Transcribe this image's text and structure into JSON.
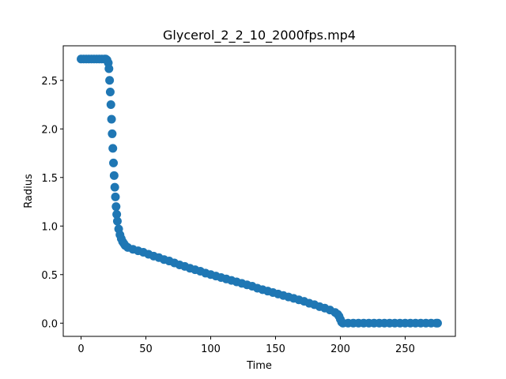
{
  "chart_data": {
    "type": "scatter",
    "title": "Glycerol_2_2_10_2000fps.mp4",
    "x_label": "Time",
    "y_label": "Radius",
    "color": "#1f77b4",
    "x": [
      0,
      2,
      4,
      6,
      8,
      10,
      12,
      14,
      16,
      18,
      19,
      20,
      21,
      21.5,
      22,
      22.5,
      23,
      23.5,
      24,
      24.5,
      25,
      25.5,
      26,
      26.5,
      27,
      27.5,
      28,
      29,
      30,
      31,
      32,
      33,
      34,
      36,
      40,
      44,
      48,
      52,
      56,
      60,
      64,
      68,
      72,
      76,
      80,
      84,
      88,
      92,
      96,
      100,
      104,
      108,
      112,
      116,
      120,
      124,
      128,
      132,
      136,
      140,
      144,
      148,
      152,
      156,
      160,
      164,
      168,
      172,
      176,
      180,
      184,
      188,
      192,
      196,
      198,
      199,
      200,
      201,
      202,
      206,
      210,
      214,
      218,
      222,
      226,
      230,
      234,
      238,
      242,
      246,
      250,
      254,
      258,
      262,
      266,
      270,
      274,
      275
    ],
    "values": [
      2.72,
      2.72,
      2.72,
      2.72,
      2.72,
      2.72,
      2.72,
      2.72,
      2.72,
      2.72,
      2.72,
      2.71,
      2.68,
      2.62,
      2.5,
      2.38,
      2.25,
      2.1,
      1.95,
      1.8,
      1.65,
      1.52,
      1.4,
      1.3,
      1.2,
      1.12,
      1.05,
      0.97,
      0.91,
      0.87,
      0.84,
      0.82,
      0.8,
      0.78,
      0.76,
      0.745,
      0.73,
      0.71,
      0.69,
      0.675,
      0.655,
      0.64,
      0.62,
      0.6,
      0.585,
      0.565,
      0.55,
      0.535,
      0.515,
      0.5,
      0.485,
      0.47,
      0.455,
      0.44,
      0.425,
      0.41,
      0.395,
      0.38,
      0.36,
      0.345,
      0.33,
      0.315,
      0.3,
      0.285,
      0.27,
      0.255,
      0.24,
      0.225,
      0.205,
      0.19,
      0.17,
      0.155,
      0.135,
      0.11,
      0.09,
      0.07,
      0.04,
      0.01,
      0,
      0,
      0,
      0,
      0,
      0,
      0,
      0,
      0,
      0,
      0,
      0,
      0,
      0,
      0,
      0,
      0,
      0,
      0,
      0
    ],
    "xlim": [
      -13.75,
      288.75
    ],
    "ylim": [
      -0.136,
      2.856
    ],
    "xticks": [
      0,
      50,
      100,
      150,
      200,
      250
    ],
    "yticks": [
      {
        "value": 0,
        "label": "0.0"
      },
      0.5,
      {
        "value": 1,
        "label": "1.0"
      },
      1.5,
      {
        "value": 2,
        "label": "2.0"
      },
      2.5
    ]
  }
}
